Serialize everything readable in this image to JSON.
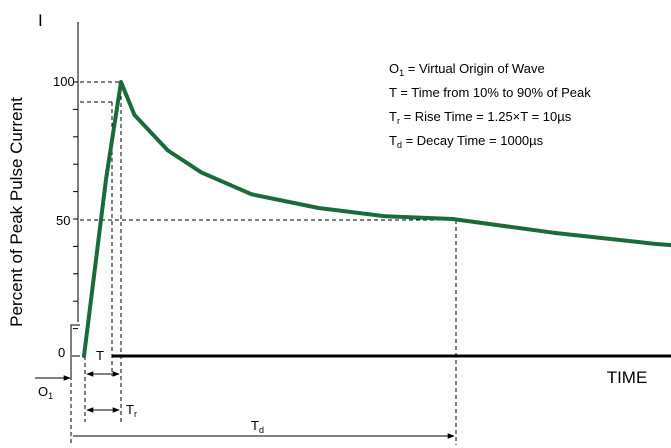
{
  "chart_data": {
    "type": "line",
    "y_axis_symbol": "I",
    "ylabel": "Percent of Peak Pulse Current",
    "xlabel": "TIME",
    "ytick_labels": [
      "100",
      "50",
      "0"
    ],
    "colors": {
      "curve": "#1b6b3a",
      "axes": "#000000"
    },
    "series": [
      {
        "values": [
          {
            "t": 0,
            "y": 0
          },
          {
            "t": 6,
            "y": 65
          },
          {
            "t": 10,
            "y": 100
          },
          {
            "t": 50,
            "y": 88
          },
          {
            "t": 150,
            "y": 75
          },
          {
            "t": 250,
            "y": 67
          },
          {
            "t": 400,
            "y": 59
          },
          {
            "t": 600,
            "y": 54
          },
          {
            "t": 800,
            "y": 51
          },
          {
            "t": 1000,
            "y": 50
          },
          {
            "t": 1300,
            "y": 45
          },
          {
            "t": 1600,
            "y": 41
          },
          {
            "t": 1800,
            "y": 39
          }
        ]
      }
    ],
    "legend": {
      "line1": {
        "main": "O",
        "sub": "1",
        "rest": " = Virtual Origin of Wave"
      },
      "line2": {
        "text": "T = Time from 10% to 90% of Peak"
      },
      "line3": {
        "main": "T",
        "sub": "r",
        "rest": " = Rise Time = 1.25×T = 10µs"
      },
      "line4": {
        "main": "T",
        "sub": "d",
        "rest": " = Decay Time = 1000µs"
      }
    },
    "annotations": {
      "origin": {
        "main": "O",
        "sub": "1"
      },
      "t_label": "T",
      "rise": {
        "main": "T",
        "sub": "r"
      },
      "decay": {
        "main": "T",
        "sub": "d"
      }
    }
  }
}
